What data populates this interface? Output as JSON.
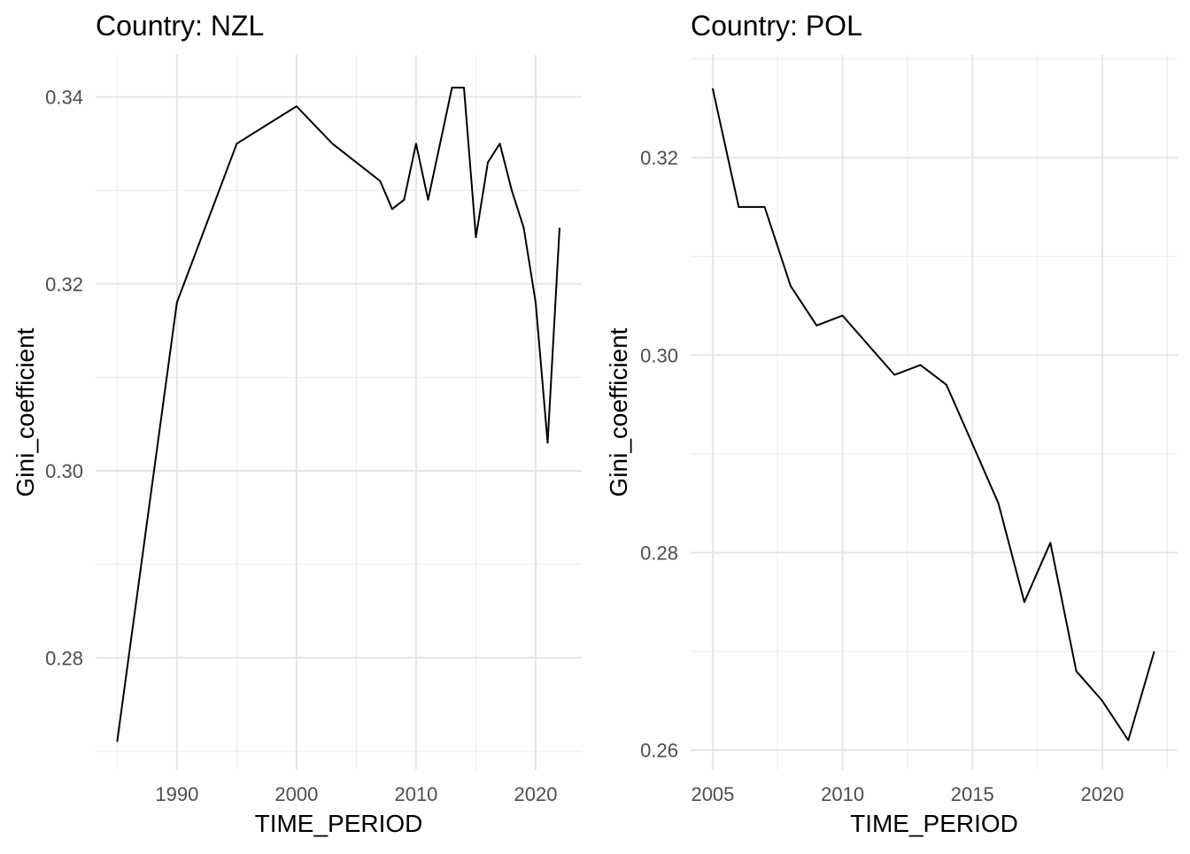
{
  "chart_data": [
    {
      "type": "line",
      "title": "Country: NZL",
      "xlabel": "TIME_PERIOD",
      "ylabel": "Gini_coefficient",
      "xlim": [
        1983.2,
        2023.85
      ],
      "ylim": [
        0.268,
        0.3445
      ],
      "xticks": [
        1990,
        2000,
        2010,
        2020
      ],
      "yticks": [
        0.28,
        0.3,
        0.32,
        0.34
      ],
      "ytick_labels": [
        "0.28",
        "0.30",
        "0.32",
        "0.34"
      ],
      "grid": true,
      "x": [
        1985,
        1990,
        1995,
        2000,
        2003,
        2007,
        2008,
        2009,
        2010,
        2011,
        2013,
        2014,
        2015,
        2016,
        2017,
        2018,
        2019,
        2020,
        2021,
        2022
      ],
      "y": [
        0.271,
        0.318,
        0.335,
        0.339,
        0.335,
        0.331,
        0.328,
        0.329,
        0.335,
        0.329,
        0.341,
        0.341,
        0.325,
        0.333,
        0.335,
        0.33,
        0.326,
        0.318,
        0.303,
        0.326
      ]
    },
    {
      "type": "line",
      "title": "Country: POL",
      "xlabel": "TIME_PERIOD",
      "ylabel": "Gini_coefficient",
      "xlim": [
        2004.15,
        2022.9
      ],
      "ylim": [
        0.258,
        0.3304
      ],
      "xticks": [
        2005,
        2010,
        2015,
        2020
      ],
      "yticks": [
        0.26,
        0.28,
        0.3,
        0.32
      ],
      "ytick_labels": [
        "0.26",
        "0.28",
        "0.30",
        "0.32"
      ],
      "grid": true,
      "x": [
        2005,
        2006,
        2007,
        2008,
        2009,
        2010,
        2011,
        2012,
        2013,
        2014,
        2015,
        2016,
        2017,
        2018,
        2019,
        2020,
        2021,
        2022
      ],
      "y": [
        0.327,
        0.315,
        0.315,
        0.307,
        0.303,
        0.304,
        0.301,
        0.298,
        0.299,
        0.297,
        0.291,
        0.285,
        0.275,
        0.281,
        0.268,
        0.265,
        0.261,
        0.27
      ]
    }
  ]
}
